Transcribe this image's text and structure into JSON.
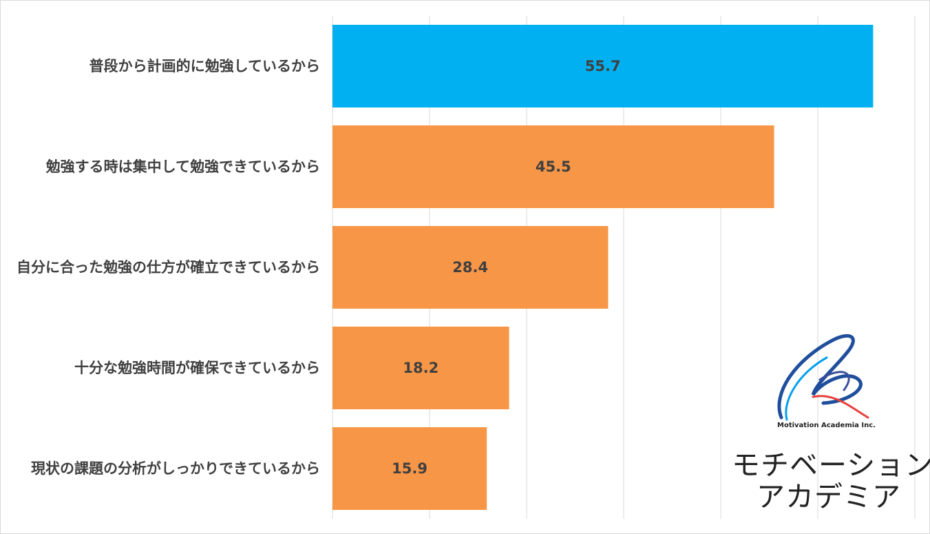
{
  "chart_data": {
    "type": "bar",
    "orientation": "horizontal",
    "categories": [
      "普段から計画的に勉強しているから",
      "勉強する時は集中して勉強できているから",
      "自分に合った勉強の仕方が確立できているから",
      "十分な勉強時間が確保できているから",
      "現状の課題の分析がしっかりできているから"
    ],
    "values": [
      55.7,
      45.5,
      28.4,
      18.2,
      15.9
    ],
    "value_labels": [
      "55.7",
      "45.5",
      "28.4",
      "18.2",
      "15.9"
    ],
    "colors": [
      "#00b0f0",
      "#f79646",
      "#f79646",
      "#f79646",
      "#f79646"
    ],
    "xlim": [
      0,
      60
    ],
    "grid": true,
    "title": "",
    "xlabel": "",
    "ylabel": ""
  },
  "logo": {
    "company_en": "Motivation Academia Inc.",
    "name_line1": "モチベーション",
    "name_line2": "アカデミア",
    "colors": [
      "#1f4e9c",
      "#00a0e9",
      "#e8403a"
    ]
  }
}
